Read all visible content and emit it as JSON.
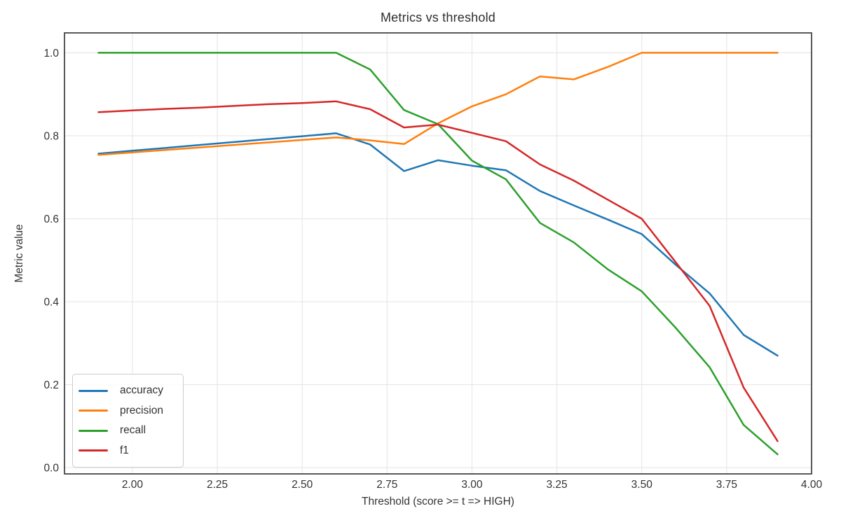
{
  "chart_data": {
    "type": "line",
    "title": "Metrics vs threshold",
    "xlabel": "Threshold (score >= t => HIGH)",
    "ylabel": "Metric value",
    "x": [
      1.9,
      2.0,
      2.1,
      2.2,
      2.3,
      2.4,
      2.5,
      2.6,
      2.7,
      2.8,
      2.9,
      3.0,
      3.1,
      3.2,
      3.3,
      3.4,
      3.5,
      3.6,
      3.7,
      3.8,
      3.9
    ],
    "series": [
      {
        "name": "accuracy",
        "color": "#1f77b4",
        "values": [
          0.757,
          0.764,
          0.771,
          0.778,
          0.785,
          0.792,
          0.799,
          0.806,
          0.779,
          0.715,
          0.741,
          0.728,
          0.717,
          0.667,
          0.632,
          0.598,
          0.563,
          0.489,
          0.42,
          0.32,
          0.27
        ]
      },
      {
        "name": "precision",
        "color": "#ff7f0e",
        "values": [
          0.754,
          0.76,
          0.766,
          0.772,
          0.778,
          0.784,
          0.79,
          0.796,
          0.789,
          0.78,
          0.83,
          0.871,
          0.9,
          0.943,
          0.936,
          0.966,
          1.0,
          1.0,
          1.0,
          1.0,
          1.0
        ]
      },
      {
        "name": "recall",
        "color": "#2ca02c",
        "values": [
          1.0,
          1.0,
          1.0,
          1.0,
          1.0,
          1.0,
          1.0,
          1.0,
          0.96,
          0.862,
          0.828,
          0.74,
          0.695,
          0.59,
          0.543,
          0.478,
          0.425,
          0.337,
          0.242,
          0.103,
          0.032
        ]
      },
      {
        "name": "f1",
        "color": "#d62728",
        "values": [
          0.857,
          0.861,
          0.865,
          0.868,
          0.872,
          0.876,
          0.879,
          0.883,
          0.864,
          0.82,
          0.827,
          0.807,
          0.787,
          0.731,
          0.692,
          0.646,
          0.6,
          0.495,
          0.39,
          0.193,
          0.064
        ]
      }
    ],
    "xlim": [
      1.8,
      4.0
    ],
    "ylim": [
      -0.015,
      1.048
    ],
    "x_ticks": [
      2.0,
      2.25,
      2.5,
      2.75,
      3.0,
      3.25,
      3.5,
      3.75,
      4.0
    ],
    "x_tick_labels": [
      "2.00",
      "2.25",
      "2.50",
      "2.75",
      "3.00",
      "3.25",
      "3.50",
      "3.75",
      "4.00"
    ],
    "y_ticks": [
      0.0,
      0.2,
      0.4,
      0.6,
      0.8,
      1.0
    ],
    "y_tick_labels": [
      "0.0",
      "0.2",
      "0.4",
      "0.6",
      "0.8",
      "1.0"
    ],
    "grid": true,
    "legend_position": "lower left",
    "legend_entries": [
      "accuracy",
      "precision",
      "recall",
      "f1"
    ],
    "line_width": 2.5,
    "colors": {
      "background": "#ffffff",
      "grid": "#e6e6e6",
      "spine": "#3c3c3c",
      "tick_label": "#333333",
      "title": "#2e2e2e"
    }
  }
}
